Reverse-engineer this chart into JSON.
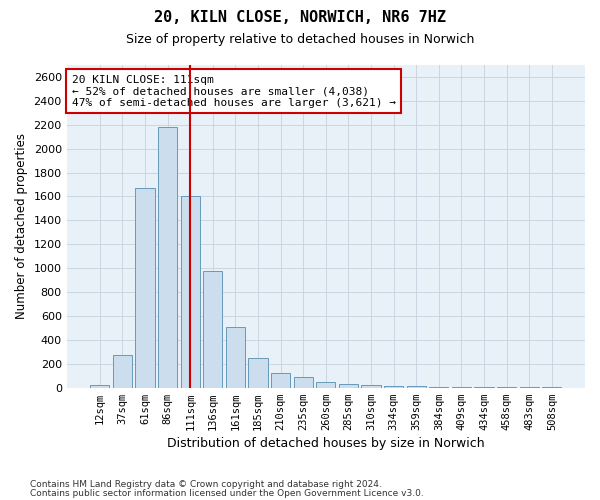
{
  "title": "20, KILN CLOSE, NORWICH, NR6 7HZ",
  "subtitle": "Size of property relative to detached houses in Norwich",
  "xlabel": "Distribution of detached houses by size in Norwich",
  "ylabel": "Number of detached properties",
  "categories": [
    "12sqm",
    "37sqm",
    "61sqm",
    "86sqm",
    "111sqm",
    "136sqm",
    "161sqm",
    "185sqm",
    "210sqm",
    "235sqm",
    "260sqm",
    "285sqm",
    "310sqm",
    "334sqm",
    "359sqm",
    "384sqm",
    "409sqm",
    "434sqm",
    "458sqm",
    "483sqm",
    "508sqm"
  ],
  "values": [
    25,
    270,
    1670,
    2180,
    1600,
    980,
    510,
    245,
    120,
    90,
    50,
    30,
    25,
    18,
    12,
    8,
    6,
    5,
    3,
    3,
    2
  ],
  "bar_color": "#ccdded",
  "bar_edge_color": "#6699bb",
  "marker_index": 4,
  "marker_line_color": "#cc0000",
  "annotation_text": "20 KILN CLOSE: 111sqm\n← 52% of detached houses are smaller (4,038)\n47% of semi-detached houses are larger (3,621) →",
  "annotation_box_color": "#ffffff",
  "annotation_box_edge_color": "#cc0000",
  "ylim": [
    0,
    2700
  ],
  "yticks": [
    0,
    200,
    400,
    600,
    800,
    1000,
    1200,
    1400,
    1600,
    1800,
    2000,
    2200,
    2400,
    2600
  ],
  "grid_color": "#c5d3e0",
  "background_color": "#e8f0f8",
  "footer1": "Contains HM Land Registry data © Crown copyright and database right 2024.",
  "footer2": "Contains public sector information licensed under the Open Government Licence v3.0."
}
